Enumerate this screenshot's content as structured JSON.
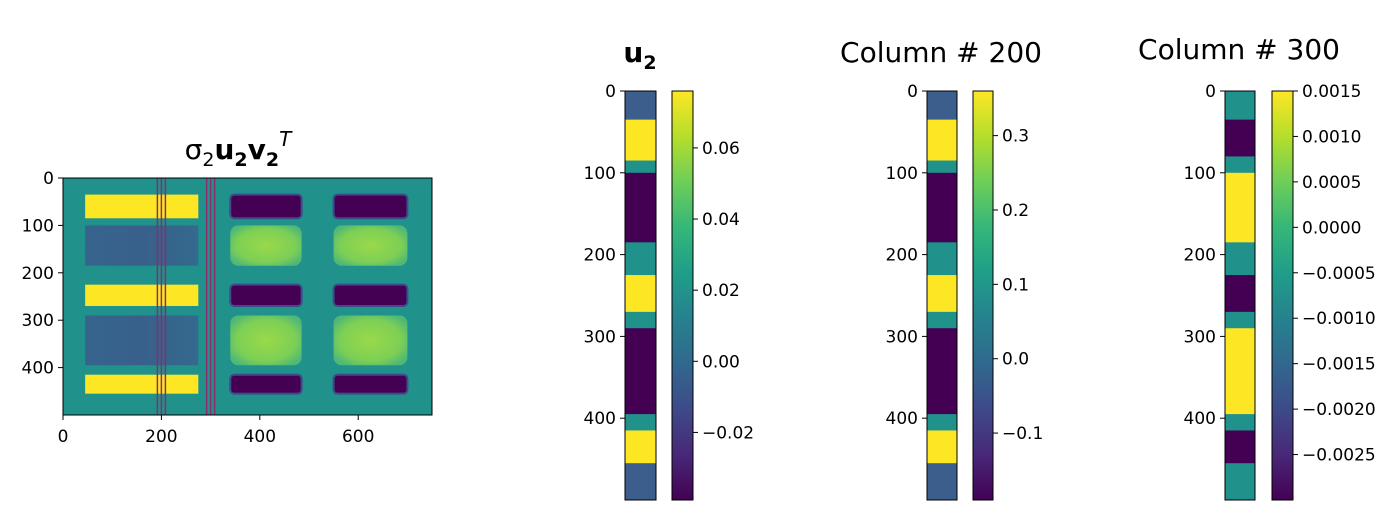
{
  "colors": {
    "viridis": [
      "#440154",
      "#482878",
      "#3e4a89",
      "#31688e",
      "#26828e",
      "#1f9e89",
      "#35b779",
      "#6ece58",
      "#b5de2b",
      "#fde725"
    ],
    "yellow": "#fde725",
    "teal": "#21918c",
    "purple": "#440154",
    "slate": "#3b5e8c",
    "lightgreen": "#8fd744",
    "line_marker": "#8c2d6a"
  },
  "chart_data": [
    {
      "type": "heatmap",
      "title": "σ2u2v2T",
      "title_parts": {
        "sigma": "σ",
        "sigma_sub": "2",
        "u": "u",
        "u_sub": "2",
        "v": "v",
        "v_sub": "2",
        "sup": "T"
      },
      "x_ticks": [
        "0",
        "200",
        "400",
        "600"
      ],
      "x_tick_values": [
        0,
        200,
        400,
        600
      ],
      "y_ticks": [
        "0",
        "100",
        "200",
        "300",
        "400"
      ],
      "y_tick_values": [
        0,
        100,
        200,
        300,
        400
      ],
      "xlim": [
        0,
        750
      ],
      "ylim": [
        0,
        500
      ],
      "highlighted_columns": [
        200,
        300
      ]
    },
    {
      "type": "heatmap",
      "title": "u2",
      "title_parts": {
        "u": "u",
        "u_sub": "2"
      },
      "y_ticks": [
        "0",
        "100",
        "200",
        "300",
        "400"
      ],
      "y_tick_values": [
        0,
        100,
        200,
        300,
        400
      ],
      "ylim": [
        0,
        500
      ],
      "colorbar": {
        "ticks": [
          "−0.02",
          "0.00",
          "0.02",
          "0.04",
          "0.06"
        ],
        "tick_values": [
          -0.02,
          0.0,
          0.02,
          0.04,
          0.06
        ],
        "range": [
          -0.039,
          0.076
        ]
      },
      "segments": [
        [
          0,
          35,
          "slate"
        ],
        [
          35,
          85,
          "yellow"
        ],
        [
          85,
          100,
          "teal"
        ],
        [
          100,
          185,
          "purple"
        ],
        [
          185,
          225,
          "teal"
        ],
        [
          225,
          270,
          "yellow"
        ],
        [
          270,
          290,
          "teal"
        ],
        [
          290,
          395,
          "purple"
        ],
        [
          395,
          415,
          "teal"
        ],
        [
          415,
          455,
          "yellow"
        ],
        [
          455,
          500,
          "slate"
        ]
      ]
    },
    {
      "type": "heatmap",
      "title": "Column # 200",
      "y_ticks": [
        "0",
        "100",
        "200",
        "300",
        "400"
      ],
      "y_tick_values": [
        0,
        100,
        200,
        300,
        400
      ],
      "ylim": [
        0,
        500
      ],
      "colorbar": {
        "ticks": [
          "−0.1",
          "0.0",
          "0.1",
          "0.2",
          "0.3"
        ],
        "tick_values": [
          -0.1,
          0.0,
          0.1,
          0.2,
          0.3
        ],
        "range": [
          -0.19,
          0.36
        ]
      },
      "segments": [
        [
          0,
          35,
          "slate"
        ],
        [
          35,
          85,
          "yellow"
        ],
        [
          85,
          100,
          "teal"
        ],
        [
          100,
          185,
          "purple"
        ],
        [
          185,
          225,
          "teal"
        ],
        [
          225,
          270,
          "yellow"
        ],
        [
          270,
          290,
          "teal"
        ],
        [
          290,
          395,
          "purple"
        ],
        [
          395,
          415,
          "teal"
        ],
        [
          415,
          455,
          "yellow"
        ],
        [
          455,
          500,
          "slate"
        ]
      ]
    },
    {
      "type": "heatmap",
      "title": "Column # 300",
      "y_ticks": [
        "0",
        "100",
        "200",
        "300",
        "400"
      ],
      "y_tick_values": [
        0,
        100,
        200,
        300,
        400
      ],
      "ylim": [
        0,
        500
      ],
      "colorbar": {
        "ticks": [
          "−0.0025",
          "−0.0020",
          "−0.0015",
          "−0.0010",
          "−0.0005",
          "0.0000",
          "0.0005",
          "0.0010",
          "0.0015"
        ],
        "tick_values": [
          -0.0025,
          -0.002,
          -0.0015,
          -0.001,
          -0.0005,
          0.0,
          0.0005,
          0.001,
          0.0015
        ],
        "range": [
          -0.003,
          0.0015
        ]
      },
      "segments": [
        [
          0,
          35,
          "teal"
        ],
        [
          35,
          80,
          "purple"
        ],
        [
          80,
          100,
          "teal"
        ],
        [
          100,
          185,
          "yellow"
        ],
        [
          185,
          225,
          "teal"
        ],
        [
          225,
          270,
          "purple"
        ],
        [
          270,
          290,
          "teal"
        ],
        [
          290,
          395,
          "yellow"
        ],
        [
          395,
          415,
          "teal"
        ],
        [
          415,
          455,
          "purple"
        ],
        [
          455,
          500,
          "teal"
        ]
      ]
    }
  ]
}
